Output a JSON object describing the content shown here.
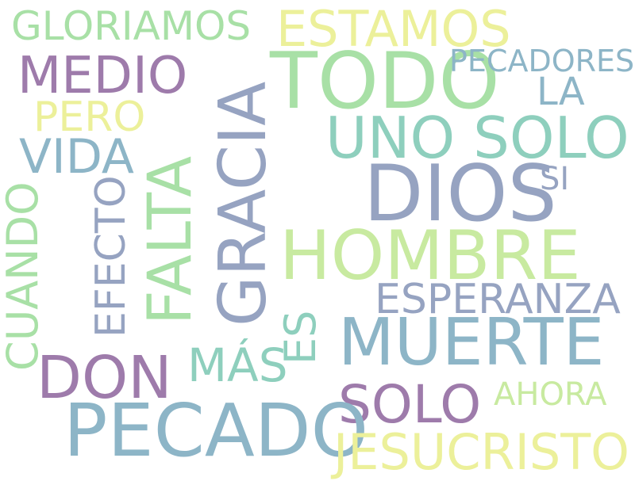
{
  "words": {
    "dios": "DIOS",
    "todo": "TODO",
    "pecado": "PECADO",
    "gracia": "GRACIA",
    "hombre": "HOMBRE",
    "muerte": "MUERTE",
    "falta": "FALTA",
    "jesucristo": "JESUCRISTO",
    "uno_solo": "UNO SOLO",
    "solo": "SOLO",
    "don": "DON",
    "estamos": "ESTAMOS",
    "medio": "MEDIO",
    "gloriamos": "GLORIAMOS",
    "esperanza": "ESPERANZA",
    "vida": "VIDA",
    "efecto": "EFECTO",
    "cuando": "CUANDO",
    "pero": "PERO",
    "mas": "MÁS",
    "es": "ES",
    "pecadores": "PECADORES",
    "la": "LA",
    "si": "SI",
    "ahora": "AHORA"
  },
  "colors": {
    "purple": "#9e7bab",
    "slate_blue": "#96a3c1",
    "steel_blue": "#8db5c7",
    "teal": "#8ecfbd",
    "green": "#a8e0a6",
    "light_green": "#c8eaa0",
    "yellow": "#ecf09a"
  }
}
